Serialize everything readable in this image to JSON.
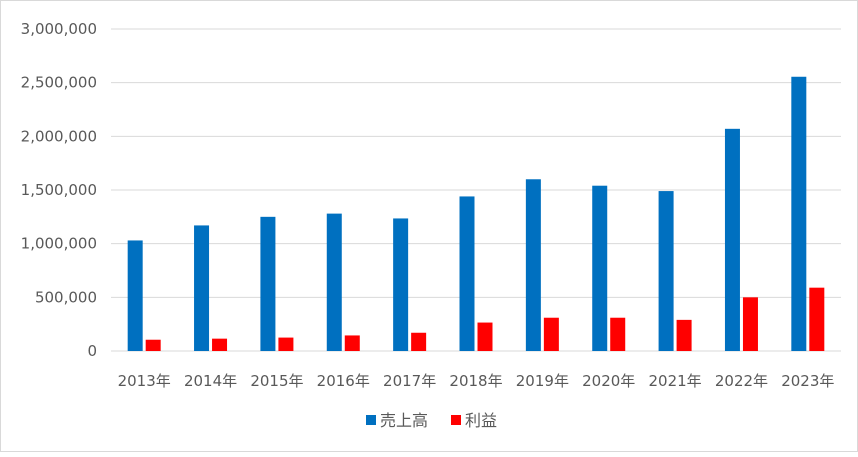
{
  "chart_data": {
    "type": "bar",
    "title": "",
    "xlabel": "",
    "ylabel": "",
    "categories": [
      "2013年",
      "2014年",
      "2015年",
      "2016年",
      "2017年",
      "2018年",
      "2019年",
      "2020年",
      "2021年",
      "2022年",
      "2023年"
    ],
    "series": [
      {
        "name": "売上高",
        "color": "#0070c0",
        "values": [
          1030000,
          1170000,
          1250000,
          1280000,
          1235000,
          1440000,
          1600000,
          1540000,
          1490000,
          2070000,
          2555000
        ]
      },
      {
        "name": "利益",
        "color": "#ff0000",
        "values": [
          105000,
          115000,
          125000,
          145000,
          170000,
          265000,
          310000,
          310000,
          290000,
          500000,
          590000
        ]
      }
    ],
    "yticks": [
      "0",
      "500,000",
      "1,000,000",
      "1,500,000",
      "2,000,000",
      "2,500,000",
      "3,000,000"
    ],
    "ylim": [
      0,
      3000000
    ],
    "grid": true,
    "legend": "bottom"
  }
}
